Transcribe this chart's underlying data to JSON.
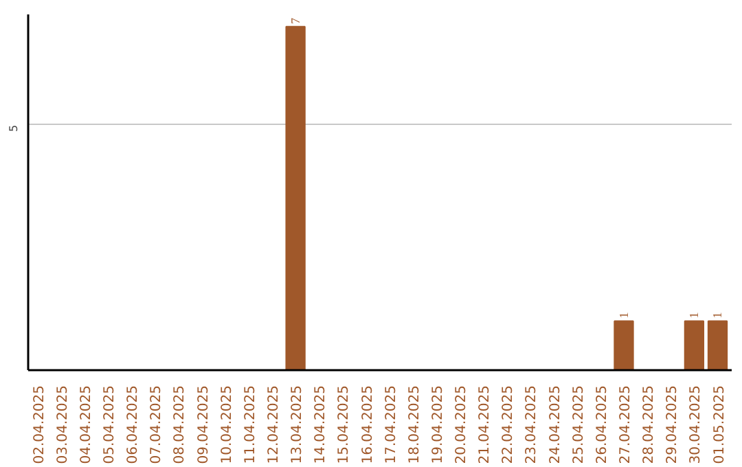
{
  "chart_data": {
    "type": "bar",
    "categories": [
      "02.04.2025",
      "03.04.2025",
      "04.04.2025",
      "05.04.2025",
      "06.04.2025",
      "07.04.2025",
      "08.04.2025",
      "09.04.2025",
      "10.04.2025",
      "11.04.2025",
      "12.04.2025",
      "13.04.2025",
      "14.04.2025",
      "15.04.2025",
      "16.04.2025",
      "17.04.2025",
      "18.04.2025",
      "19.04.2025",
      "20.04.2025",
      "21.04.2025",
      "22.04.2025",
      "23.04.2025",
      "24.04.2025",
      "25.04.2025",
      "26.04.2025",
      "27.04.2025",
      "28.04.2025",
      "29.04.2025",
      "30.04.2025",
      "01.05.2025"
    ],
    "values": [
      0,
      0,
      0,
      0,
      0,
      0,
      0,
      0,
      0,
      0,
      0,
      7,
      0,
      0,
      0,
      0,
      0,
      0,
      0,
      0,
      0,
      0,
      0,
      0,
      0,
      1,
      0,
      0,
      1,
      1
    ],
    "value_labels": [
      null,
      null,
      null,
      null,
      null,
      null,
      null,
      null,
      null,
      null,
      null,
      "7",
      null,
      null,
      null,
      null,
      null,
      null,
      null,
      null,
      null,
      null,
      null,
      null,
      null,
      "1",
      null,
      null,
      "1",
      "1"
    ],
    "color": "#a0582a",
    "ylim": [
      0,
      7.25
    ],
    "yticks": [
      5
    ],
    "grid": "y"
  }
}
